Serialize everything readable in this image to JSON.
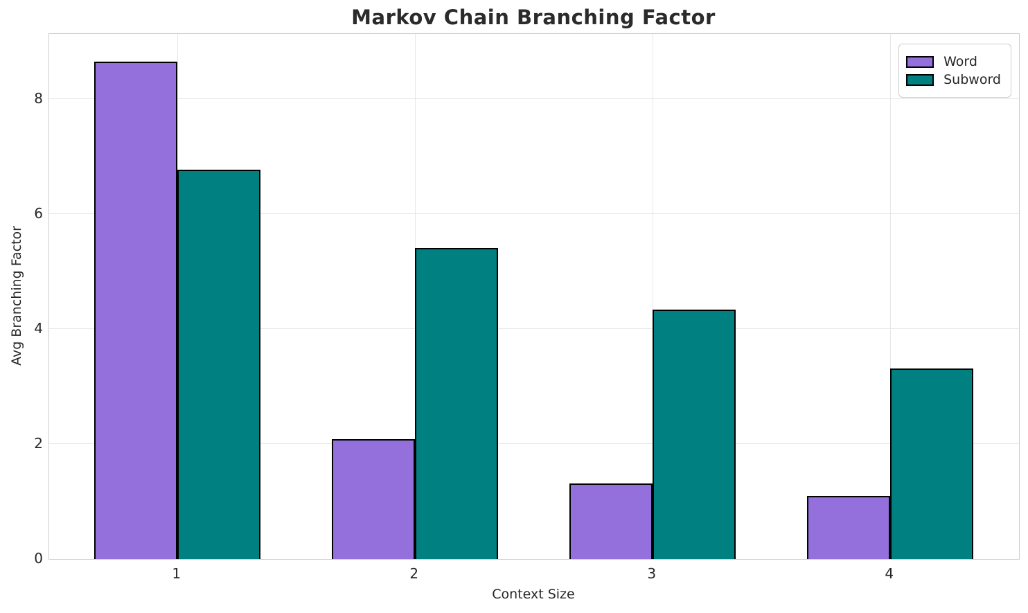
{
  "chart_data": {
    "type": "bar",
    "title": "Markov Chain Branching Factor",
    "xlabel": "Context Size",
    "ylabel": "Avg Branching Factor",
    "categories": [
      "1",
      "2",
      "3",
      "4"
    ],
    "series": [
      {
        "name": "Word",
        "color": "#9370DB",
        "values": [
          8.65,
          2.08,
          1.31,
          1.1
        ]
      },
      {
        "name": "Subword",
        "color": "#008080",
        "values": [
          6.77,
          5.41,
          4.34,
          3.31
        ]
      }
    ],
    "ylim": [
      0,
      9.13
    ],
    "yticks": [
      0,
      2,
      4,
      6,
      8
    ],
    "grid": true,
    "grid_color": "#e7e7e7",
    "spine_color": "#cccccc",
    "bar_edge_color": "#000000",
    "text_color": "#262626",
    "legend_position": "upper right"
  }
}
